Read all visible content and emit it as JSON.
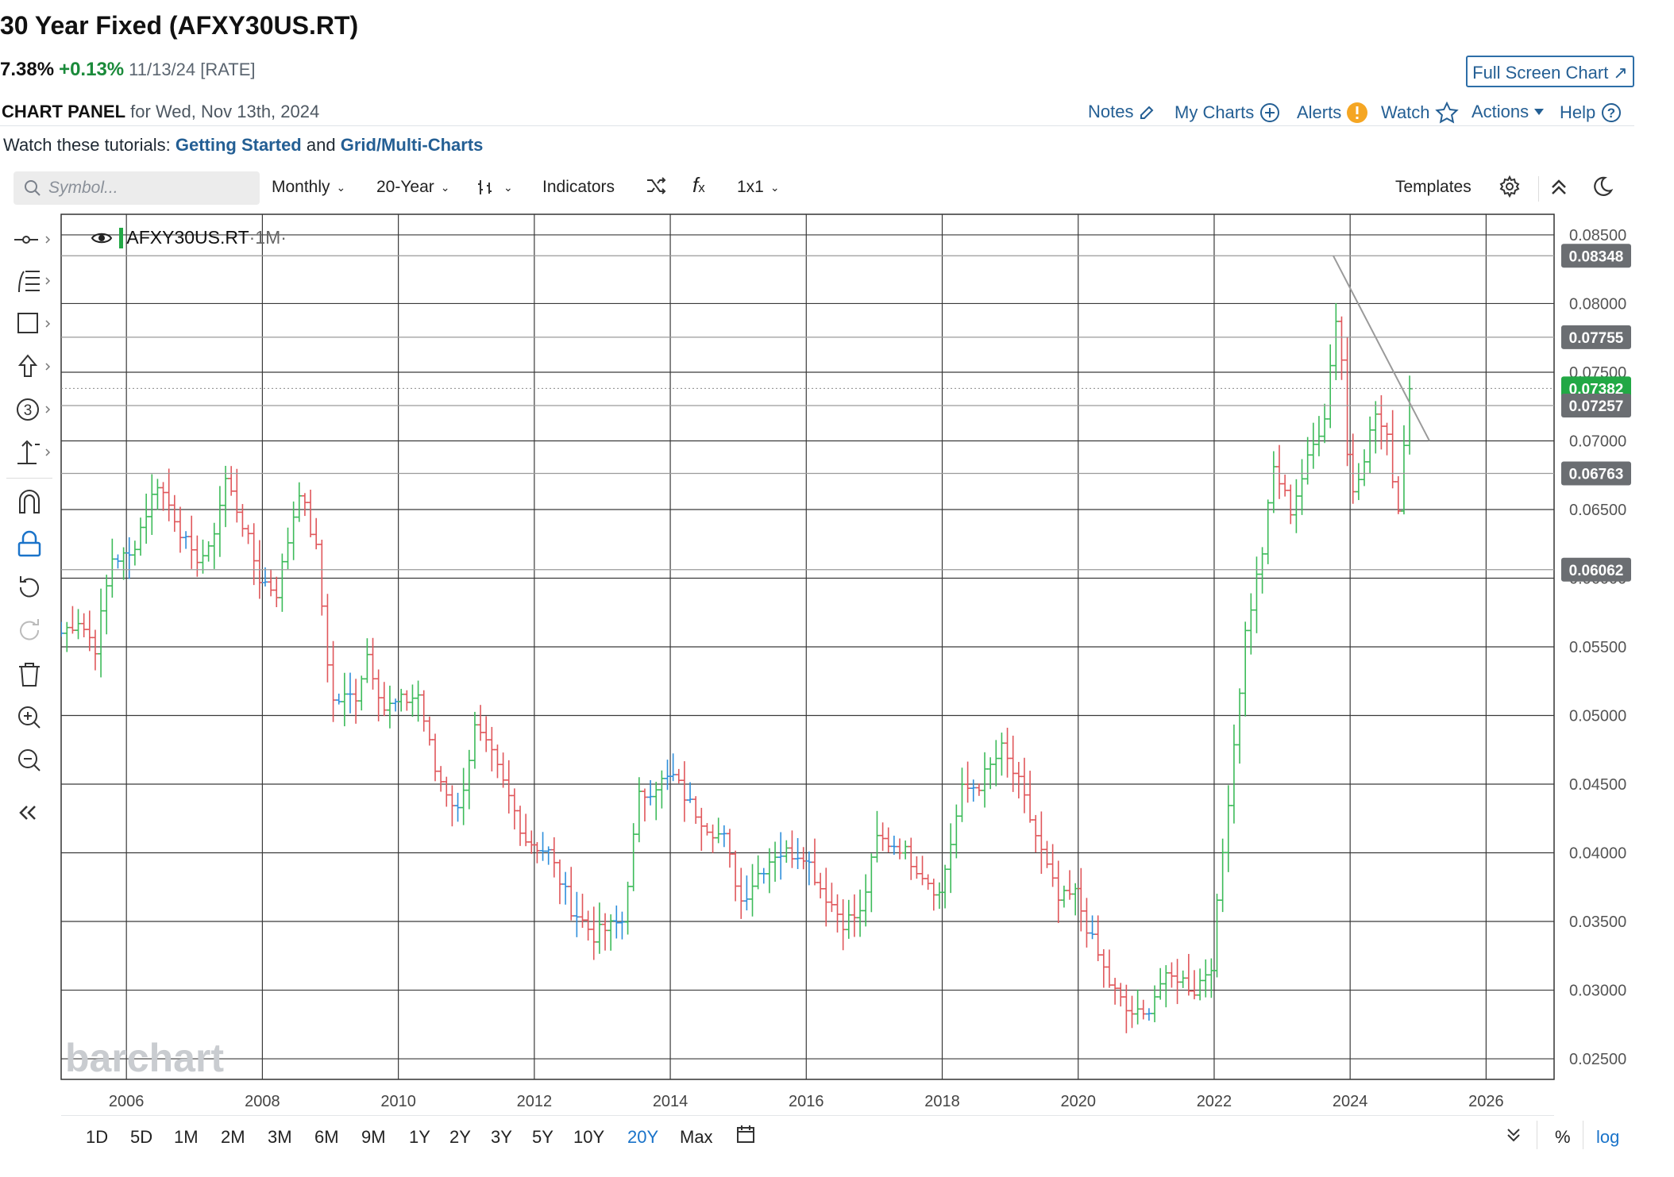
{
  "header": {
    "title": "30 Year Fixed (AFXY30US.RT)",
    "last": "7.38%",
    "change": "+0.13%",
    "date": "11/13/24 [RATE]",
    "full_screen": "Full Screen Chart ↗"
  },
  "panel": {
    "label": "CHART PANEL",
    "for_text": "for Wed, Nov 13th, 2024",
    "nav": {
      "notes": "Notes",
      "my_charts": "My Charts",
      "alerts": "Alerts",
      "watch": "Watch",
      "actions": "Actions",
      "help": "Help"
    }
  },
  "tutorials": {
    "prefix": "Watch these tutorials:",
    "link1": "Getting Started",
    "and": "and",
    "link2": "Grid/Multi-Charts"
  },
  "toolbar": {
    "search_placeholder": "Symbol...",
    "period": "Monthly",
    "range": "20-Year",
    "indicators": "Indicators",
    "layout": "1x1",
    "templates": "Templates"
  },
  "chart_header": {
    "symbol": "AFXY30US.RT",
    "interval": "·1M·"
  },
  "watermark": "barchart",
  "bottom": {
    "ranges": [
      "1D",
      "5D",
      "1M",
      "2M",
      "3M",
      "6M",
      "9M",
      "1Y",
      "2Y",
      "3Y",
      "5Y",
      "10Y",
      "20Y",
      "Max"
    ],
    "active": "20Y",
    "percent": "%",
    "log": "log"
  },
  "colors": {
    "up": "#3dbb5a",
    "down": "#e0575b",
    "flat": "#2e8fdc",
    "current": "#22a845",
    "label_gray": "#6b6e72"
  },
  "chart_data": {
    "type": "ohlc",
    "interval": "monthly",
    "x_ticks": [
      "2006",
      "2008",
      "2010",
      "2012",
      "2014",
      "2016",
      "2018",
      "2020",
      "2022",
      "2024",
      "2026"
    ],
    "y_ticks": [
      "0.08500",
      "0.08000",
      "0.07500",
      "0.07000",
      "0.06500",
      "0.06000",
      "0.05500",
      "0.05000",
      "0.04500",
      "0.04000",
      "0.03500",
      "0.03000",
      "0.02500"
    ],
    "ylim": [
      0.0235,
      0.0865
    ],
    "xlim": [
      2005.04,
      2027.0
    ],
    "price_labels": [
      "0.08348",
      "0.07755",
      "0.07382",
      "0.07257",
      "0.06763",
      "0.06062"
    ],
    "current_price": "0.07382",
    "trendline": {
      "start": {
        "date": "2023-10",
        "price": 0.0835
      },
      "end": {
        "date": "2025-03",
        "price": 0.07
      }
    },
    "anchors": [
      [
        "2005-01",
        0.056
      ],
      [
        "2005-04",
        0.057
      ],
      [
        "2005-07",
        0.055
      ],
      [
        "2005-10",
        0.0615
      ],
      [
        "2006-01",
        0.0615
      ],
      [
        "2006-06",
        0.067
      ],
      [
        "2006-09",
        0.0645
      ],
      [
        "2006-12",
        0.0615
      ],
      [
        "2007-03",
        0.0618
      ],
      [
        "2007-06",
        0.0672
      ],
      [
        "2007-09",
        0.064
      ],
      [
        "2007-12",
        0.06
      ],
      [
        "2008-03",
        0.059
      ],
      [
        "2008-07",
        0.0665
      ],
      [
        "2008-10",
        0.062
      ],
      [
        "2008-12",
        0.054
      ],
      [
        "2009-01",
        0.051
      ],
      [
        "2009-05",
        0.0515
      ],
      [
        "2009-07",
        0.0545
      ],
      [
        "2009-10",
        0.0505
      ],
      [
        "2010-01",
        0.051
      ],
      [
        "2010-04",
        0.0515
      ],
      [
        "2010-07",
        0.046
      ],
      [
        "2010-11",
        0.043
      ],
      [
        "2011-02",
        0.049
      ],
      [
        "2011-05",
        0.047
      ],
      [
        "2011-08",
        0.044
      ],
      [
        "2011-11",
        0.041
      ],
      [
        "2012-03",
        0.04
      ],
      [
        "2012-07",
        0.036
      ],
      [
        "2012-11",
        0.034
      ],
      [
        "2013-04",
        0.035
      ],
      [
        "2013-07",
        0.044
      ],
      [
        "2013-10",
        0.045
      ],
      [
        "2014-01",
        0.0455
      ],
      [
        "2014-04",
        0.0435
      ],
      [
        "2014-07",
        0.042
      ],
      [
        "2014-10",
        0.041
      ],
      [
        "2015-01",
        0.0365
      ],
      [
        "2015-04",
        0.0385
      ],
      [
        "2015-07",
        0.04
      ],
      [
        "2015-12",
        0.04
      ],
      [
        "2016-03",
        0.0375
      ],
      [
        "2016-07",
        0.035
      ],
      [
        "2016-10",
        0.0355
      ],
      [
        "2017-01",
        0.041
      ],
      [
        "2017-05",
        0.0405
      ],
      [
        "2017-09",
        0.0385
      ],
      [
        "2017-12",
        0.037
      ],
      [
        "2018-04",
        0.0445
      ],
      [
        "2018-07",
        0.045
      ],
      [
        "2018-11",
        0.0475
      ],
      [
        "2019-02",
        0.045
      ],
      [
        "2019-06",
        0.04
      ],
      [
        "2019-09",
        0.0365
      ],
      [
        "2019-12",
        0.037
      ],
      [
        "2020-03",
        0.0335
      ],
      [
        "2020-06",
        0.0305
      ],
      [
        "2020-09",
        0.0285
      ],
      [
        "2020-12",
        0.028
      ],
      [
        "2021-03",
        0.0305
      ],
      [
        "2021-06",
        0.031
      ],
      [
        "2021-09",
        0.03
      ],
      [
        "2021-12",
        0.032
      ],
      [
        "2022-03",
        0.044
      ],
      [
        "2022-06",
        0.056
      ],
      [
        "2022-09",
        0.062
      ],
      [
        "2022-11",
        0.068
      ],
      [
        "2023-02",
        0.065
      ],
      [
        "2023-05",
        0.0685
      ],
      [
        "2023-08",
        0.072
      ],
      [
        "2023-10",
        0.079
      ],
      [
        "2023-11",
        0.076
      ],
      [
        "2023-12",
        0.069
      ],
      [
        "2024-01",
        0.0665
      ],
      [
        "2024-03",
        0.069
      ],
      [
        "2024-05",
        0.072
      ],
      [
        "2024-07",
        0.07
      ],
      [
        "2024-09",
        0.065
      ],
      [
        "2024-10",
        0.07
      ],
      [
        "2024-11",
        0.0738
      ]
    ]
  }
}
